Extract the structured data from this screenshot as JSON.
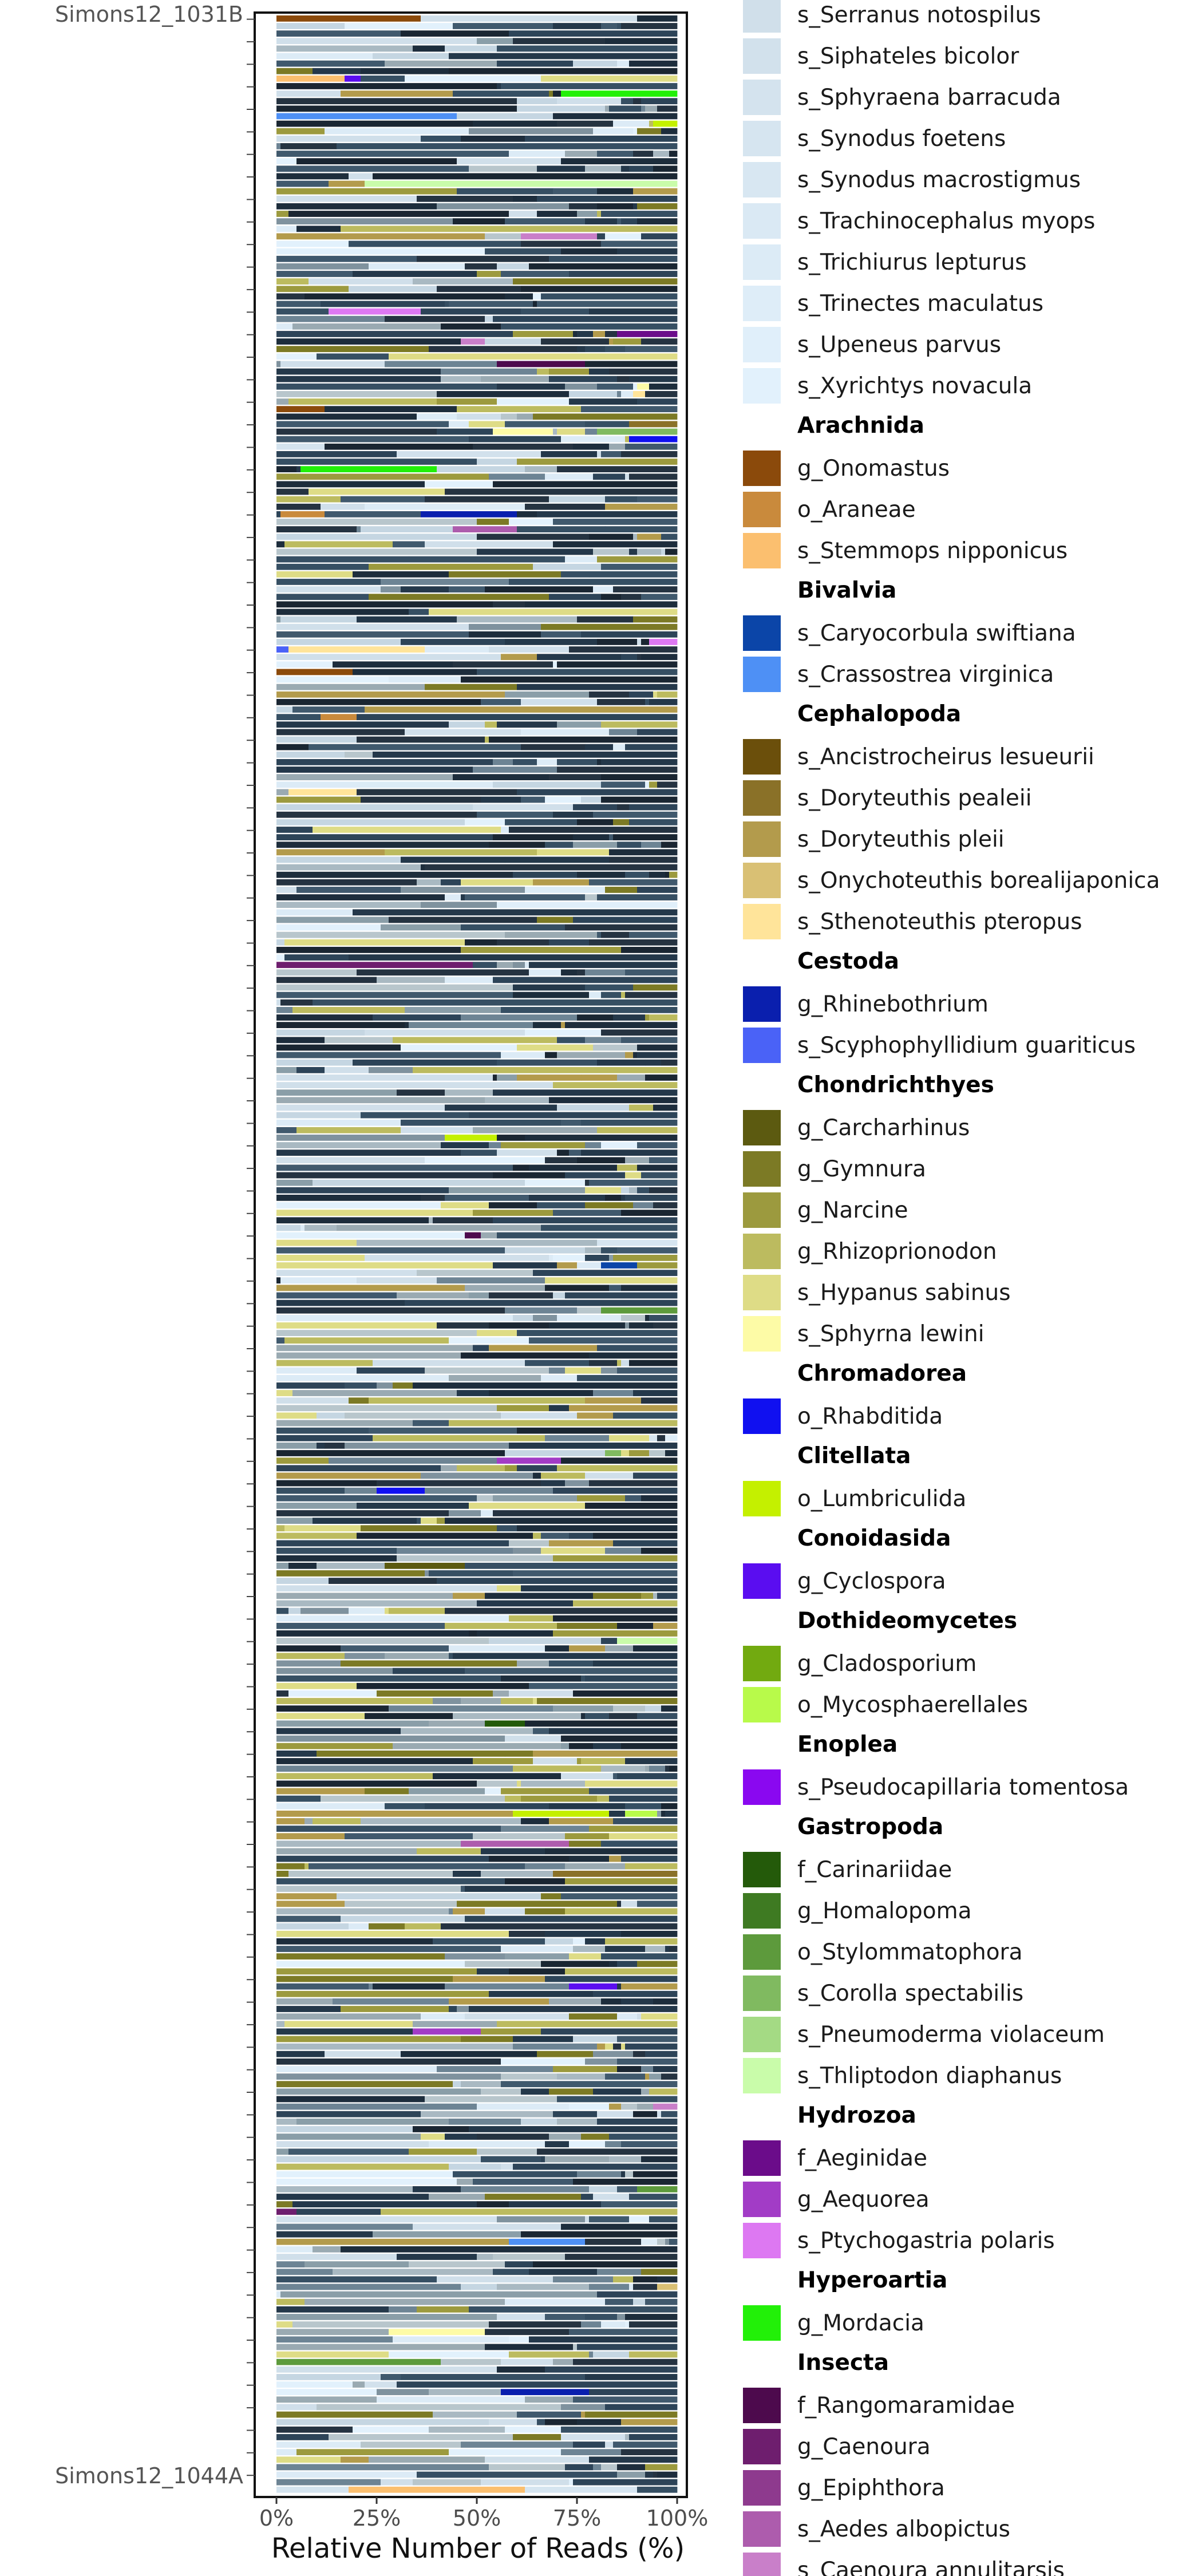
{
  "chart_data": {
    "type": "bar",
    "orientation": "horizontal",
    "stacked": true,
    "xlabel": "Relative Number of Reads (%)",
    "x_tick_labels": [
      "0%",
      "25%",
      "50%",
      "75%",
      "100%"
    ],
    "xlim": [
      0,
      100
    ],
    "sample_count": 330,
    "visible_sample_labels": [
      "Simons12_1031B",
      "Simons12_1044A"
    ],
    "samples": [
      {
        "label": "Simons12_1031B",
        "segments": [
          {
            "taxon": "g_Onomastus",
            "value": 36
          },
          {
            "taxon": "s_Serranus notospilus",
            "value": 54
          },
          {
            "taxon": "other",
            "value": 10
          }
        ]
      },
      {
        "label": "Simons12_1044A",
        "segments": [
          {
            "taxon": "s_Sphyraena barracuda",
            "value": 18
          },
          {
            "taxon": "s_Stemmops nipponicus",
            "value": 44
          },
          {
            "taxon": "s_Synodus foetens",
            "value": 28
          },
          {
            "taxon": "other",
            "value": 10
          }
        ]
      }
    ],
    "legend_position": "right",
    "legend": [
      {
        "type": "item",
        "label": "s_Serranus notospilus",
        "color": "#d0dfea"
      },
      {
        "type": "item",
        "label": "s_Siphateles bicolor",
        "color": "#d2e1ec"
      },
      {
        "type": "item",
        "label": "s_Sphyraena barracuda",
        "color": "#d4e3ee"
      },
      {
        "type": "item",
        "label": "s_Synodus foetens",
        "color": "#d6e5f0"
      },
      {
        "type": "item",
        "label": "s_Synodus macrostigmus",
        "color": "#d8e7f2"
      },
      {
        "type": "item",
        "label": "s_Trachinocephalus myops",
        "color": "#dae9f4"
      },
      {
        "type": "item",
        "label": "s_Trichiurus lepturus",
        "color": "#dcebf6"
      },
      {
        "type": "item",
        "label": "s_Trinectes maculatus",
        "color": "#deedf8"
      },
      {
        "type": "item",
        "label": "s_Upeneus parvus",
        "color": "#e0effa"
      },
      {
        "type": "item",
        "label": "s_Xyrichtys novacula",
        "color": "#e2f1fc"
      },
      {
        "type": "group",
        "label": "Arachnida"
      },
      {
        "type": "item",
        "label": "g_Onomastus",
        "color": "#8b4a0b"
      },
      {
        "type": "item",
        "label": "o_Araneae",
        "color": "#c98a3c"
      },
      {
        "type": "item",
        "label": "s_Stemmops nipponicus",
        "color": "#fbbf6f"
      },
      {
        "type": "group",
        "label": "Bivalvia"
      },
      {
        "type": "item",
        "label": "s_Caryocorbula swiftiana",
        "color": "#0b45a8"
      },
      {
        "type": "item",
        "label": "s_Crassostrea virginica",
        "color": "#4e90f5"
      },
      {
        "type": "group",
        "label": "Cephalopoda"
      },
      {
        "type": "item",
        "label": "s_Ancistrocheirus lesueurii",
        "color": "#6b4f0b"
      },
      {
        "type": "item",
        "label": "s_Doryteuthis pealeii",
        "color": "#8a7128"
      },
      {
        "type": "item",
        "label": "s_Doryteuthis pleii",
        "color": "#b39b4c"
      },
      {
        "type": "item",
        "label": "s_Onychoteuthis borealijaponica",
        "color": "#d9c074"
      },
      {
        "type": "item",
        "label": "s_Sthenoteuthis pteropus",
        "color": "#ffe49a"
      },
      {
        "type": "group",
        "label": "Cestoda"
      },
      {
        "type": "item",
        "label": "g_Rhinebothrium",
        "color": "#0a1fae"
      },
      {
        "type": "item",
        "label": "s_Scyphophyllidium guariticus",
        "color": "#4a62f7"
      },
      {
        "type": "group",
        "label": "Chondrichthyes"
      },
      {
        "type": "item",
        "label": "g_Carcharhinus",
        "color": "#5c5a10"
      },
      {
        "type": "item",
        "label": "g_Gymnura",
        "color": "#7c7a25"
      },
      {
        "type": "item",
        "label": "g_Narcine",
        "color": "#9c9a3e"
      },
      {
        "type": "item",
        "label": "g_Rhizoprionodon",
        "color": "#bcbb5f"
      },
      {
        "type": "item",
        "label": "s_Hypanus sabinus",
        "color": "#dedc86"
      },
      {
        "type": "item",
        "label": "s_Sphyrna lewini",
        "color": "#fdfba6"
      },
      {
        "type": "group",
        "label": "Chromadorea"
      },
      {
        "type": "item",
        "label": "o_Rhabditida",
        "color": "#1010f0"
      },
      {
        "type": "group",
        "label": "Clitellata"
      },
      {
        "type": "item",
        "label": "o_Lumbriculida",
        "color": "#c4f000"
      },
      {
        "type": "group",
        "label": "Conoidasida"
      },
      {
        "type": "item",
        "label": "g_Cyclospora",
        "color": "#5a0df0"
      },
      {
        "type": "group",
        "label": "Dothideomycetes"
      },
      {
        "type": "item",
        "label": "g_Cladosporium",
        "color": "#72aa10"
      },
      {
        "type": "item",
        "label": "o_Mycosphaerellales",
        "color": "#b8fa4a"
      },
      {
        "type": "group",
        "label": "Enoplea"
      },
      {
        "type": "item",
        "label": "s_Pseudocapillaria tomentosa",
        "color": "#8a08f0"
      },
      {
        "type": "group",
        "label": "Gastropoda"
      },
      {
        "type": "item",
        "label": "f_Carinariidae",
        "color": "#245a0a"
      },
      {
        "type": "item",
        "label": "g_Homalopoma",
        "color": "#3e7a22"
      },
      {
        "type": "item",
        "label": "o_Stylommatophora",
        "color": "#5d9a3c"
      },
      {
        "type": "item",
        "label": "s_Corolla spectabilis",
        "color": "#80ba60"
      },
      {
        "type": "item",
        "label": "s_Pneumoderma violaceum",
        "color": "#a4da84"
      },
      {
        "type": "item",
        "label": "s_Thliptodon diaphanus",
        "color": "#c9fcaa"
      },
      {
        "type": "group",
        "label": "Hydrozoa"
      },
      {
        "type": "item",
        "label": "f_Aeginidae",
        "color": "#6b0c8a"
      },
      {
        "type": "item",
        "label": "g_Aequorea",
        "color": "#a23cc6"
      },
      {
        "type": "item",
        "label": "s_Ptychogastria polaris",
        "color": "#dd78f2"
      },
      {
        "type": "group",
        "label": "Hyperoartia"
      },
      {
        "type": "item",
        "label": "g_Mordacia",
        "color": "#22f008"
      },
      {
        "type": "group",
        "label": "Insecta"
      },
      {
        "type": "item",
        "label": "f_Rangomaramidae",
        "color": "#4d0a4d"
      },
      {
        "type": "item",
        "label": "g_Caenoura",
        "color": "#6e1e6e"
      },
      {
        "type": "item",
        "label": "g_Epiphthora",
        "color": "#8e3a8e"
      },
      {
        "type": "item",
        "label": "s_Aedes albopictus",
        "color": "#ad5cad"
      },
      {
        "type": "item",
        "label": "s_Caenoura annulitarsis",
        "color": "#c97fc9"
      }
    ]
  }
}
